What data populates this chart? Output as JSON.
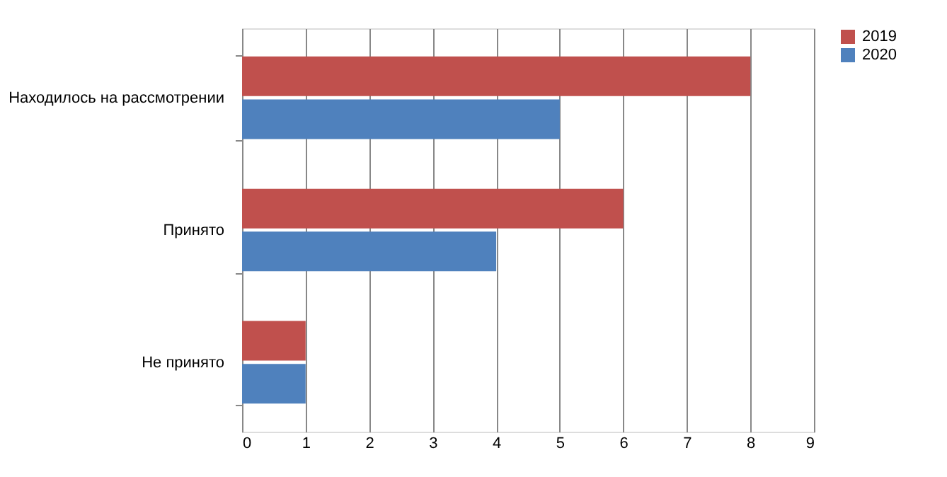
{
  "chart_data": {
    "type": "bar",
    "orientation": "horizontal",
    "categories": [
      "Находилось на рассмотрении",
      "Принято",
      "Не принято"
    ],
    "series": [
      {
        "name": "2019",
        "color": "#c0504d",
        "values": [
          8,
          6,
          1
        ]
      },
      {
        "name": "2020",
        "color": "#4f81bd",
        "values": [
          5,
          4,
          1
        ]
      }
    ],
    "xlim": [
      0,
      9
    ],
    "xticks": [
      0,
      1,
      2,
      3,
      4,
      5,
      6,
      7,
      8,
      9
    ],
    "grid": "x",
    "legend": "right"
  }
}
